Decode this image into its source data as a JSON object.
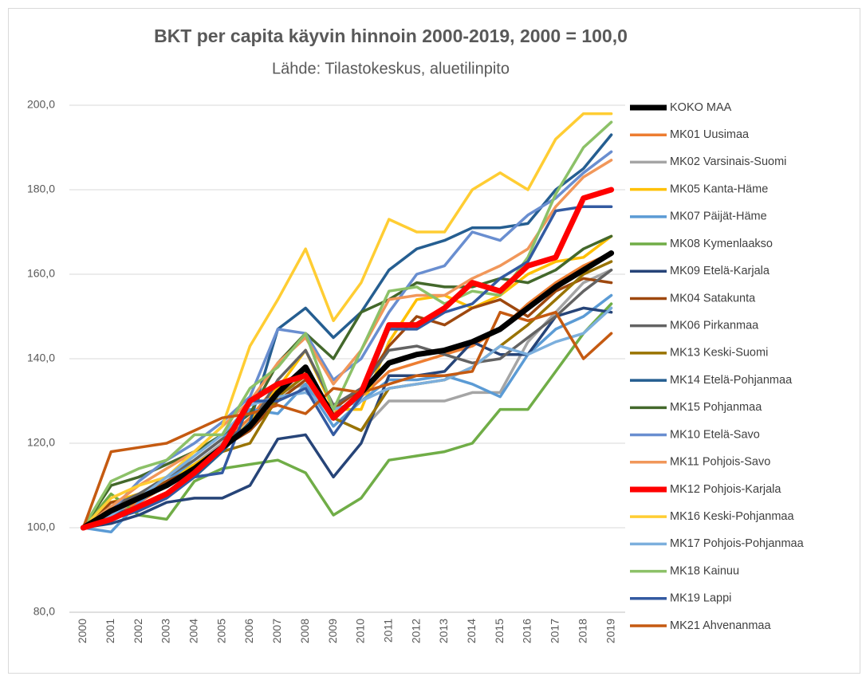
{
  "chart_data": {
    "type": "line",
    "title": "BKT per capita käyvin hinnoin 2000-2019, 2000 = 100,0",
    "subtitle": "Lähde: Tilastokeskus, aluetilinpito",
    "categories": [
      "2000",
      "2001",
      "2002",
      "2003",
      "2004",
      "2005",
      "2006",
      "2007",
      "2008",
      "2009",
      "2010",
      "2011",
      "2012",
      "2013",
      "2014",
      "2015",
      "2016",
      "2017",
      "2018",
      "2019"
    ],
    "ylim": [
      80,
      200
    ],
    "yticks": [
      {
        "value": 80,
        "label": "80,0"
      },
      {
        "value": 100,
        "label": "100,0"
      },
      {
        "value": 120,
        "label": "120,0"
      },
      {
        "value": 140,
        "label": "140,0"
      },
      {
        "value": 160,
        "label": "160,0"
      },
      {
        "value": 180,
        "label": "180,0"
      },
      {
        "value": 200,
        "label": "200,0"
      }
    ],
    "grid": true,
    "legend": "right",
    "series": [
      {
        "name": "KOKO MAA",
        "color": "#000000",
        "linewidth": 7,
        "values": [
          100,
          104,
          107,
          110,
          114,
          119,
          124,
          132,
          138,
          126,
          132,
          139,
          141,
          142,
          144,
          147,
          152,
          157,
          161,
          165
        ]
      },
      {
        "name": "MK01 Uusimaa",
        "color": "#ED7D31",
        "linewidth": 3.5,
        "values": [
          100,
          103,
          106,
          110,
          114,
          120,
          126,
          134,
          137,
          127,
          131,
          137,
          139,
          141,
          143,
          147,
          153,
          158,
          162,
          165
        ]
      },
      {
        "name": "MK02 Varsinais-Suomi",
        "color": "#A5A5A5",
        "linewidth": 3.5,
        "values": [
          100,
          104,
          108,
          111,
          115,
          120,
          124,
          132,
          134,
          126,
          123,
          130,
          130,
          130,
          132,
          132,
          144,
          151,
          158,
          161
        ]
      },
      {
        "name": "MK05 Kanta-Häme",
        "color": "#FFC000",
        "linewidth": 3.5,
        "values": [
          100,
          106,
          108,
          111,
          115,
          119,
          125,
          133,
          142,
          128,
          128,
          144,
          154,
          155,
          152,
          155,
          160,
          163,
          164,
          169
        ]
      },
      {
        "name": "MK07 Päijät-Häme",
        "color": "#5B9BD5",
        "linewidth": 3.5,
        "values": [
          100,
          99,
          106,
          111,
          116,
          121,
          128,
          127,
          134,
          124,
          130,
          135,
          135,
          136,
          134,
          131,
          141,
          147,
          150,
          155
        ]
      },
      {
        "name": "MK08 Kymenlaakso",
        "color": "#70AD47",
        "linewidth": 3.5,
        "values": [
          100,
          108,
          103,
          102,
          111,
          114,
          115,
          116,
          113,
          103,
          107,
          116,
          117,
          118,
          120,
          128,
          128,
          137,
          146,
          153
        ]
      },
      {
        "name": "MK09 Etelä-Karjala",
        "color": "#264478",
        "linewidth": 3.5,
        "values": [
          100,
          101,
          103,
          106,
          107,
          107,
          110,
          121,
          122,
          112,
          120,
          136,
          136,
          137,
          144,
          141,
          141,
          150,
          152,
          151
        ]
      },
      {
        "name": "MK04 Satakunta",
        "color": "#9E480E",
        "linewidth": 3.5,
        "values": [
          100,
          106,
          107,
          111,
          114,
          119,
          123,
          130,
          135,
          128,
          133,
          143,
          150,
          148,
          152,
          154,
          150,
          156,
          159,
          158
        ]
      },
      {
        "name": "MK06 Pirkanmaa",
        "color": "#636363",
        "linewidth": 3.5,
        "values": [
          100,
          105,
          108,
          112,
          116,
          121,
          124,
          135,
          142,
          129,
          133,
          142,
          143,
          141,
          139,
          140,
          145,
          150,
          156,
          161
        ]
      },
      {
        "name": "MK13 Keski-Suomi",
        "color": "#997300",
        "linewidth": 3.5,
        "values": [
          100,
          103,
          107,
          110,
          114,
          118,
          120,
          131,
          136,
          126,
          123,
          133,
          134,
          135,
          138,
          143,
          148,
          154,
          160,
          163
        ]
      },
      {
        "name": "MK14 Etelä-Pohjanmaa",
        "color": "#255E91",
        "linewidth": 3.5,
        "values": [
          100,
          103,
          105,
          108,
          112,
          118,
          125,
          147,
          152,
          145,
          151,
          161,
          166,
          168,
          171,
          171,
          172,
          180,
          185,
          193
        ]
      },
      {
        "name": "MK15 Pohjanmaa",
        "color": "#43682B",
        "linewidth": 3.5,
        "values": [
          100,
          110,
          112,
          115,
          118,
          122,
          127,
          139,
          146,
          140,
          151,
          154,
          158,
          157,
          157,
          159,
          158,
          161,
          166,
          169
        ]
      },
      {
        "name": "MK10 Etelä-Savo",
        "color": "#698ED0",
        "linewidth": 3.5,
        "values": [
          100,
          104,
          111,
          116,
          120,
          125,
          131,
          147,
          146,
          135,
          140,
          151,
          160,
          162,
          170,
          168,
          174,
          178,
          184,
          189
        ]
      },
      {
        "name": "MK11 Pohjois-Savo",
        "color": "#F1975A",
        "linewidth": 3.5,
        "values": [
          100,
          105,
          110,
          114,
          118,
          124,
          130,
          139,
          145,
          134,
          142,
          154,
          155,
          155,
          159,
          162,
          166,
          176,
          183,
          187
        ]
      },
      {
        "name": "MK12 Pohjois-Karjala",
        "color": "#FF0000",
        "linewidth": 7,
        "values": [
          100,
          102,
          105,
          108,
          113,
          119,
          130,
          134,
          136,
          126,
          132,
          148,
          148,
          152,
          158,
          156,
          162,
          164,
          178,
          180
        ]
      },
      {
        "name": "MK16 Keski-Pohjanmaa",
        "color": "#FFCD33",
        "linewidth": 3.5,
        "values": [
          100,
          107,
          110,
          112,
          118,
          124,
          143,
          154,
          166,
          149,
          158,
          173,
          170,
          170,
          180,
          184,
          180,
          192,
          198,
          198
        ]
      },
      {
        "name": "MK17 Pohjois-Pohjanmaa",
        "color": "#7CAFDD",
        "linewidth": 3.5,
        "values": [
          100,
          103,
          107,
          112,
          117,
          122,
          129,
          131,
          132,
          128,
          130,
          133,
          134,
          135,
          138,
          143,
          141,
          144,
          146,
          152
        ]
      },
      {
        "name": "MK18 Kainuu",
        "color": "#8CC168",
        "linewidth": 3.5,
        "values": [
          100,
          111,
          114,
          116,
          122,
          122,
          133,
          138,
          146,
          128,
          142,
          156,
          157,
          153,
          156,
          155,
          164,
          179,
          190,
          196
        ]
      },
      {
        "name": "MK19 Lappi",
        "color": "#335AA1",
        "linewidth": 3.5,
        "values": [
          100,
          102,
          104,
          107,
          112,
          113,
          130,
          130,
          133,
          122,
          131,
          147,
          147,
          151,
          153,
          159,
          163,
          175,
          176,
          176
        ]
      },
      {
        "name": "MK21 Ahvenanmaa",
        "color": "#C55A11",
        "linewidth": 3.5,
        "values": [
          100,
          118,
          119,
          120,
          123,
          126,
          127,
          129,
          127,
          133,
          132,
          134,
          136,
          136,
          137,
          151,
          149,
          151,
          140,
          146
        ]
      }
    ]
  }
}
